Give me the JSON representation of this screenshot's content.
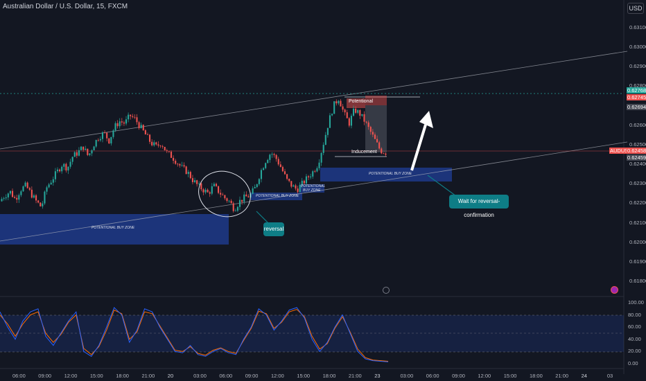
{
  "header": {
    "symbol_title": "Australian Dollar / U.S. Dollar, 15, FXCM",
    "currency_button": "USD"
  },
  "price_axis": {
    "ticks": [
      "0.63100",
      "0.63000",
      "0.62900",
      "0.62800",
      "0.62700",
      "0.62600",
      "0.62500",
      "0.62400",
      "0.62300",
      "0.62200",
      "0.62100",
      "0.62000",
      "0.61900",
      "0.61800"
    ],
    "badges": [
      {
        "text": "0.62768",
        "color": "#26a69a"
      },
      {
        "text": "0.62745",
        "color": "#ef5350"
      },
      {
        "text": "0.62694",
        "color": "#434651"
      },
      {
        "text": "AUDUSD",
        "color": "#ef5350"
      },
      {
        "text": "0.62458",
        "color": "#ef5350"
      },
      {
        "text": "0.62459",
        "color": "#434651"
      }
    ]
  },
  "oscillator_axis": {
    "ticks": [
      "100.00",
      "80.00",
      "60.00",
      "40.00",
      "20.00",
      "0.00"
    ]
  },
  "time_axis": {
    "ticks": [
      "06:00",
      "09:00",
      "12:00",
      "15:00",
      "18:00",
      "21:00",
      "20",
      "03:00",
      "06:00",
      "09:00",
      "12:00",
      "15:00",
      "18:00",
      "21:00",
      "23",
      "03:00",
      "06:00",
      "09:00",
      "12:00",
      "15:00",
      "18:00",
      "21:00",
      "24",
      "03"
    ]
  },
  "annotations": {
    "zone_large": "POTENTIONAL BUY ZONE",
    "zone_mid": "POTENTIONAL BUY ZONE",
    "zone_small_line1": "POTENTIONAL",
    "zone_small_line2": "BUY ZONE",
    "zone_right": "POTENTIONAL BUY ZONE",
    "potential_label": "Potentional",
    "inducement_label": "Inducement",
    "reversal_callout": "reversal",
    "wait_callout": "Wait for reversal-confirmation"
  },
  "colors": {
    "background": "#131722",
    "bull": "#26a69a",
    "bear": "#ef5350",
    "zone": "#1e3a8a",
    "callout": "#0e7d86",
    "stoch_k": "#2962ff",
    "stoch_d": "#ff6d00"
  },
  "chart_data": {
    "type": "candlestick",
    "price_path": [
      0.6221,
      0.6224,
      0.6226,
      0.6222,
      0.6227,
      0.6229,
      0.6225,
      0.6221,
      0.6218,
      0.6228,
      0.6232,
      0.6236,
      0.624,
      0.6238,
      0.6244,
      0.6246,
      0.6249,
      0.6244,
      0.625,
      0.6254,
      0.6256,
      0.6252,
      0.6259,
      0.6262,
      0.6261,
      0.6265,
      0.6263,
      0.6259,
      0.6255,
      0.6251,
      0.6249,
      0.6251,
      0.6246,
      0.6244,
      0.6241,
      0.6238,
      0.6236,
      0.6232,
      0.6229,
      0.6227,
      0.6225,
      0.6229,
      0.6226,
      0.6223,
      0.6221,
      0.6217,
      0.6221,
      0.6223,
      0.6224,
      0.6228,
      0.6236,
      0.6242,
      0.6246,
      0.6243,
      0.6238,
      0.6232,
      0.6229,
      0.6227,
      0.623,
      0.6233,
      0.6236,
      0.624,
      0.625,
      0.6261,
      0.627,
      0.6274,
      0.6266,
      0.6261,
      0.6268,
      0.6266,
      0.6262,
      0.6257,
      0.6252,
      0.6247,
      0.6246
    ],
    "stochastic_k": [
      85,
      60,
      40,
      70,
      85,
      90,
      45,
      30,
      50,
      70,
      85,
      20,
      12,
      30,
      60,
      92,
      80,
      35,
      55,
      90,
      85,
      60,
      40,
      20,
      18,
      30,
      15,
      12,
      20,
      25,
      18,
      15,
      40,
      60,
      90,
      80,
      55,
      70,
      88,
      92,
      75,
      40,
      20,
      35,
      60,
      80,
      50,
      20,
      8,
      5,
      4,
      3
    ],
    "stochastic_d": [
      80,
      65,
      45,
      65,
      80,
      85,
      50,
      35,
      48,
      68,
      80,
      25,
      15,
      28,
      55,
      88,
      82,
      40,
      52,
      85,
      82,
      62,
      42,
      22,
      20,
      28,
      17,
      14,
      22,
      26,
      20,
      17,
      38,
      58,
      86,
      82,
      58,
      68,
      85,
      89,
      77,
      45,
      24,
      33,
      58,
      77,
      52,
      24,
      10,
      6,
      5,
      4
    ],
    "ylim": [
      0.6175,
      0.6318
    ],
    "osc_ylim": [
      0,
      100
    ]
  }
}
